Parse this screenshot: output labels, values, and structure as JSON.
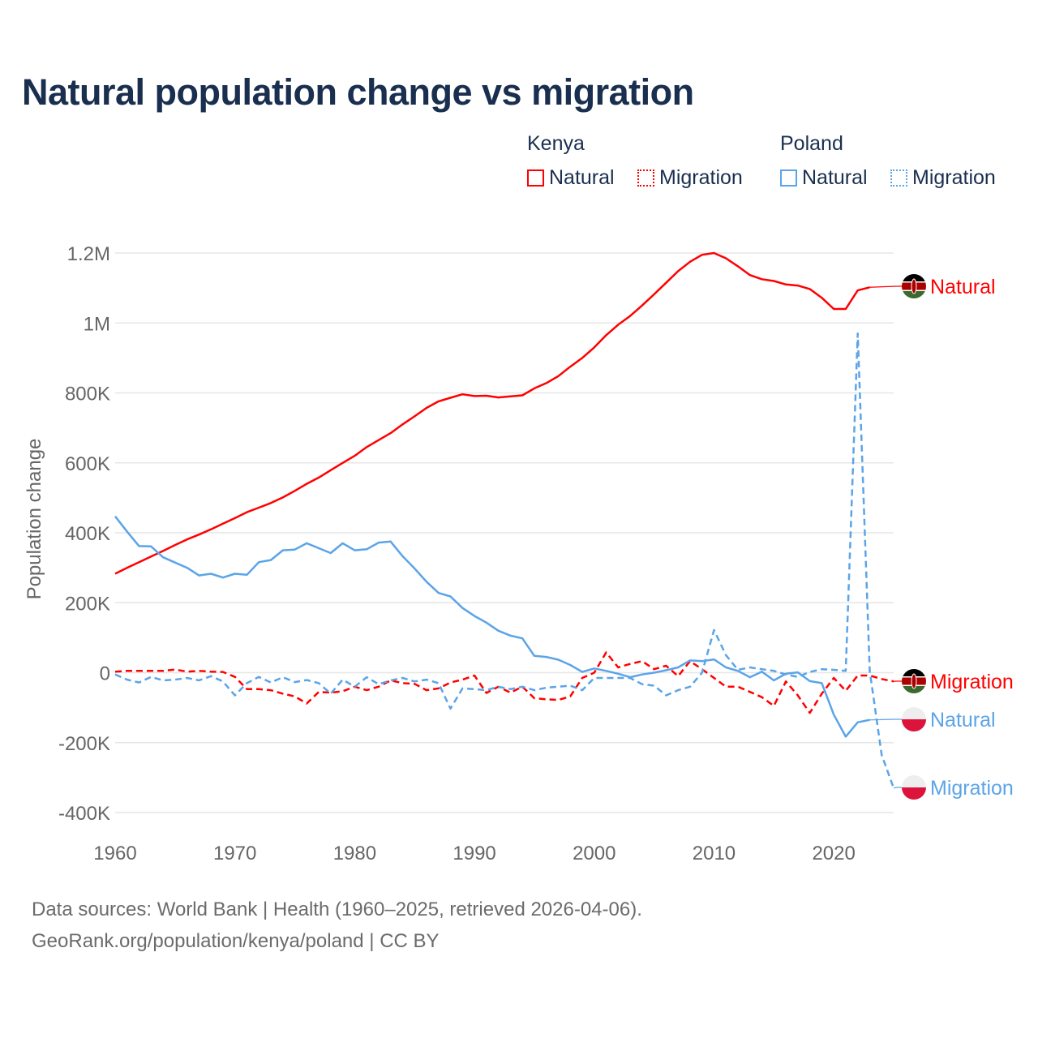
{
  "title": "Natural population change vs migration",
  "legend": {
    "groups": [
      {
        "country": "Kenya",
        "items": [
          {
            "label": "Natural",
            "style": "solid"
          },
          {
            "label": "Migration",
            "style": "dotted"
          }
        ]
      },
      {
        "country": "Poland",
        "items": [
          {
            "label": "Natural",
            "style": "solid"
          },
          {
            "label": "Migration",
            "style": "dotted"
          }
        ]
      }
    ]
  },
  "footer": {
    "line1": "Data sources: World Bank | Health (1960–2025, retrieved 2026-04-06).",
    "line2": "GeoRank.org/population/kenya/poland | CC BY"
  },
  "colors": {
    "kenya": "#ff0000",
    "poland": "#5ba4e8",
    "grid": "#e6e6e6",
    "axis_text": "#666666"
  },
  "chart_data": {
    "type": "line",
    "title": "Natural population change vs migration",
    "xlabel": "",
    "ylabel": "Population change",
    "xlim": [
      1960,
      2025
    ],
    "ylim": [
      -400000,
      1200000
    ],
    "grid": true,
    "legend_position": "top-right",
    "x_ticks": [
      1960,
      1970,
      1980,
      1990,
      2000,
      2010,
      2020
    ],
    "x_tick_labels": [
      "1960",
      "1970",
      "1980",
      "1990",
      "2000",
      "2010",
      "2020"
    ],
    "y_ticks": [
      -400000,
      -200000,
      0,
      200000,
      400000,
      600000,
      800000,
      1000000,
      1200000
    ],
    "y_tick_labels": [
      "-400K",
      "-200K",
      "0",
      "200K",
      "400K",
      "600K",
      "800K",
      "1M",
      "1.2M"
    ],
    "series": [
      {
        "name": "Kenya Natural",
        "end_label": "Natural",
        "country": "kenya",
        "dash": false,
        "start": 1960,
        "values_k": [
          283,
          300,
          316,
          332,
          348,
          365,
          381,
          395,
          410,
          426,
          442,
          459,
          472,
          485,
          501,
          520,
          540,
          558,
          579,
          600,
          620,
          645,
          665,
          685,
          710,
          733,
          757,
          776,
          786,
          796,
          791,
          792,
          787,
          790,
          793,
          813,
          828,
          848,
          875,
          900,
          930,
          965,
          995,
          1020,
          1050,
          1082,
          1115,
          1148,
          1175,
          1195,
          1200,
          1185,
          1162,
          1137,
          1125,
          1120,
          1110,
          1107,
          1097,
          1072,
          1040,
          1040,
          1093,
          1102
        ]
      },
      {
        "name": "Kenya Migration",
        "end_label": "Migration",
        "country": "kenya",
        "dash": true,
        "start": 1960,
        "values_k": [
          3,
          5,
          5,
          5,
          5,
          9,
          3,
          5,
          3,
          2,
          -12,
          -47,
          -47,
          -50,
          -60,
          -68,
          -88,
          -55,
          -57,
          -53,
          -40,
          -50,
          -40,
          -22,
          -30,
          -32,
          -50,
          -45,
          -28,
          -20,
          -8,
          -58,
          -40,
          -57,
          -40,
          -73,
          -76,
          -78,
          -68,
          -15,
          0,
          58,
          15,
          25,
          33,
          10,
          20,
          -10,
          33,
          10,
          -15,
          -40,
          -40,
          -55,
          -70,
          -95,
          -25,
          -65,
          -115,
          -60,
          -15,
          -52,
          -8,
          -8,
          -18,
          -25
        ]
      },
      {
        "name": "Poland Natural",
        "end_label": "Natural",
        "country": "poland",
        "dash": false,
        "start": 1960,
        "values_k": [
          447,
          403,
          362,
          361,
          330,
          315,
          300,
          278,
          283,
          272,
          283,
          280,
          316,
          322,
          350,
          352,
          370,
          356,
          342,
          370,
          350,
          353,
          372,
          375,
          333,
          298,
          260,
          228,
          218,
          185,
          162,
          143,
          120,
          106,
          98,
          48,
          45,
          37,
          22,
          2,
          12,
          5,
          -3,
          -13,
          -5,
          0,
          7,
          15,
          35,
          33,
          38,
          15,
          5,
          -13,
          3,
          -22,
          -3,
          1,
          -24,
          -30,
          -120,
          -183,
          -142,
          -135
        ]
      },
      {
        "name": "Poland Migration",
        "end_label": "Migration",
        "country": "poland",
        "dash": true,
        "start": 1960,
        "values_k": [
          -5,
          -20,
          -28,
          -12,
          -22,
          -20,
          -15,
          -22,
          -10,
          -25,
          -65,
          -30,
          -12,
          -28,
          -13,
          -27,
          -21,
          -30,
          -60,
          -20,
          -40,
          -13,
          -33,
          -22,
          -15,
          -25,
          -20,
          -30,
          -103,
          -45,
          -47,
          -50,
          -40,
          -47,
          -40,
          -50,
          -43,
          -40,
          -37,
          -50,
          -15,
          -15,
          -15,
          -15,
          -33,
          -37,
          -65,
          -50,
          -40,
          0,
          122,
          50,
          8,
          15,
          10,
          5,
          -5,
          -12,
          2,
          10,
          8,
          5,
          970,
          5,
          -235,
          -330
        ]
      }
    ]
  }
}
